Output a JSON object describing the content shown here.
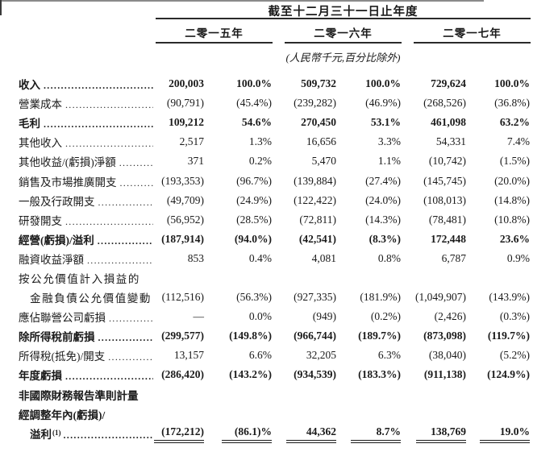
{
  "header": {
    "period_title": "截至十二月三十一日止年度",
    "years": [
      "二零一五年",
      "二零一六年",
      "二零一七年"
    ],
    "unit_note": "(人民幣千元,百分比除外)"
  },
  "table": {
    "columns": [
      "2015-amount",
      "2015-percent",
      "2016-amount",
      "2016-percent",
      "2017-amount",
      "2017-percent"
    ],
    "rows": [
      {
        "label": "收入",
        "dots": true,
        "bold": true,
        "values": [
          "200,003",
          "100.0%",
          "509,732",
          "100.0%",
          "729,624",
          "100.0%"
        ]
      },
      {
        "label": "營業成本",
        "dots": true,
        "bold": false,
        "values": [
          "(90,791)",
          "(45.4%)",
          "(239,282)",
          "(46.9%)",
          "(268,526)",
          "(36.8%)"
        ]
      },
      {
        "label": "毛利",
        "dots": true,
        "bold": true,
        "values": [
          "109,212",
          "54.6%",
          "270,450",
          "53.1%",
          "461,098",
          "63.2%"
        ]
      },
      {
        "label": "其他收入",
        "dots": true,
        "bold": false,
        "values": [
          "2,517",
          "1.3%",
          "16,656",
          "3.3%",
          "54,331",
          "7.4%"
        ]
      },
      {
        "label": "其他收益/(虧損)淨額",
        "dots": true,
        "bold": false,
        "values": [
          "371",
          "0.2%",
          "5,470",
          "1.1%",
          "(10,742)",
          "(1.5%)"
        ]
      },
      {
        "label": "銷售及市場推廣開支",
        "dots": true,
        "bold": false,
        "values": [
          "(193,353)",
          "(96.7%)",
          "(139,884)",
          "(27.4%)",
          "(145,745)",
          "(20.0%)"
        ]
      },
      {
        "label": "一般及行政開支",
        "dots": true,
        "bold": false,
        "values": [
          "(49,709)",
          "(24.9%)",
          "(122,422)",
          "(24.0%)",
          "(108,013)",
          "(14.8%)"
        ]
      },
      {
        "label": "研發開支",
        "dots": true,
        "bold": false,
        "values": [
          "(56,952)",
          "(28.5%)",
          "(72,811)",
          "(14.3%)",
          "(78,481)",
          "(10.8%)"
        ]
      },
      {
        "label": "經營(虧損)/溢利",
        "dots": true,
        "bold": true,
        "values": [
          "(187,914)",
          "(94.0%)",
          "(42,541)",
          "(8.3%)",
          "172,448",
          "23.6%"
        ]
      },
      {
        "label": "融資收益淨額",
        "dots": true,
        "bold": false,
        "values": [
          "853",
          "0.4%",
          "4,081",
          "0.8%",
          "6,787",
          "0.9%"
        ]
      },
      {
        "label": "按公允價值計入損益的",
        "dots": false,
        "bold": false,
        "tracking": true,
        "values": null
      },
      {
        "label": "金融負債公允價值變動",
        "dots": true,
        "bold": false,
        "indent": true,
        "tracking": true,
        "values": [
          "(112,516)",
          "(56.3%)",
          "(927,335)",
          "(181.9%)",
          "(1,049,907)",
          "(143.9%)"
        ]
      },
      {
        "label": "應佔聯營公司虧損",
        "dots": true,
        "bold": false,
        "values": [
          "—",
          "0.0%",
          "(949)",
          "(0.2%)",
          "(2,426)",
          "(0.3%)"
        ]
      },
      {
        "label": "除所得稅前虧損",
        "dots": true,
        "bold": true,
        "values": [
          "(299,577)",
          "(149.8%)",
          "(966,744)",
          "(189.7%)",
          "(873,098)",
          "(119.7%)"
        ]
      },
      {
        "label": "所得稅(抵免)/開支",
        "dots": true,
        "bold": false,
        "values": [
          "13,157",
          "6.6%",
          "32,205",
          "6.3%",
          "(38,040)",
          "(5.2%)"
        ]
      },
      {
        "label": "年度虧損",
        "dots": true,
        "bold": true,
        "values": [
          "(286,420)",
          "(143.2%)",
          "(934,539)",
          "(183.3%)",
          "(911,138)",
          "(124.9%)"
        ]
      },
      {
        "label": "非國際財務報告準則計量",
        "dots": false,
        "bold": true,
        "values": null
      },
      {
        "label": "經調整年內(虧損)/",
        "dots": false,
        "bold": true,
        "values": null
      },
      {
        "label": "溢利",
        "sup": "(1)",
        "dots": true,
        "bold": true,
        "indent": true,
        "total": true,
        "values": [
          "(172,212)",
          "(86.1)%",
          "44,362",
          "8.7%",
          "138,769",
          "19.0%"
        ]
      }
    ]
  }
}
